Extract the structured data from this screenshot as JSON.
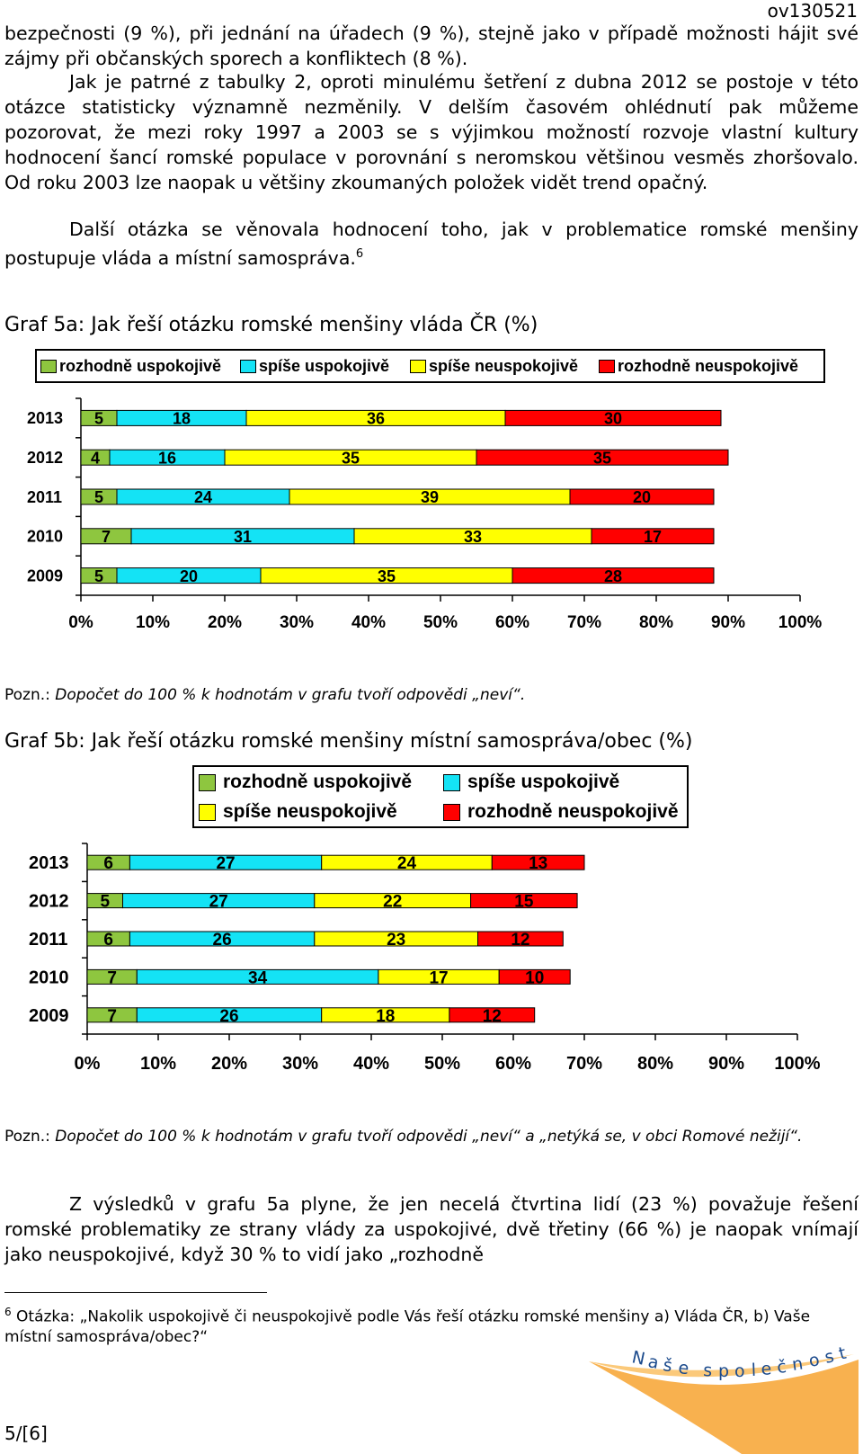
{
  "doc_code": "ov130521",
  "paragraphs": {
    "p1": "bezpečnosti (9 %), při jednání na úřadech (9 %), stejně jako v případě možnosti hájit své zájmy při občanských sporech a konfliktech (8 %).",
    "p2": "Jak je patrné z tabulky 2, oproti minulému šetření z dubna 2012 se postoje v této otázce statisticky významně nezměnily. V delším časovém ohlédnutí pak můžeme pozorovat, že mezi roky 1997 a 2003 se s výjimkou možností rozvoje vlastní kultury hodnocení šancí romské populace v porovnání s neromskou většinou vesměs zhoršovalo. Od roku 2003 lze naopak u většiny zkoumaných položek vidět trend opačný.",
    "p3": "Další otázka se věnovala hodnocení toho, jak v problematice romské menšiny postupuje vláda a místní samospráva.",
    "p3_sup": "6",
    "p4": "Z výsledků v grafu 5a plyne, že jen necelá čtvrtina lidí (23 %) považuje řešení romské problematiky ze strany vlády za uspokojivé, dvě třetiny (66 %) je naopak vnímají jako neuspokojivé, když 30 % to vidí jako „rozhodně"
  },
  "colors": {
    "rozhodne_uspokojive": "#8ec63f",
    "spise_uspokojive": "#14e3f5",
    "spise_neuspokojive": "#ffff00",
    "rozhodne_neuspokojive": "#ff0000"
  },
  "graf5a": {
    "title": "Graf 5a: Jak řeší otázku romské menšiny vláda ČR (%)",
    "note_prefix": "Pozn.:",
    "note": " Dopočet do 100 % k hodnotám v grafu tvoří odpovědi „neví“."
  },
  "graf5b": {
    "title": "Graf 5b: Jak řeší otázku romské menšiny místní samospráva/obec (%)",
    "note_prefix": "Pozn.:",
    "note": " Dopočet do 100 % k hodnotám v grafu tvoří odpovědi „neví“ a „netýká se, v obci Romové nežijí“."
  },
  "chart_data": [
    {
      "type": "bar",
      "orientation": "horizontal",
      "stacked": true,
      "categories": [
        "2013",
        "2012",
        "2011",
        "2010",
        "2009"
      ],
      "series": [
        {
          "name": "rozhodně uspokojivě",
          "values": [
            5,
            4,
            5,
            7,
            5
          ]
        },
        {
          "name": "spíše uspokojivě",
          "values": [
            18,
            16,
            24,
            31,
            20
          ]
        },
        {
          "name": "spíše neuspokojivě",
          "values": [
            36,
            35,
            39,
            33,
            35
          ]
        },
        {
          "name": "rozhodně neuspokojivě",
          "values": [
            30,
            35,
            20,
            17,
            28
          ]
        }
      ],
      "xticks": [
        "0%",
        "10%",
        "20%",
        "30%",
        "40%",
        "50%",
        "60%",
        "70%",
        "80%",
        "90%",
        "100%"
      ],
      "xlim": [
        0,
        100
      ],
      "legend": "top",
      "grid": false
    },
    {
      "type": "bar",
      "orientation": "horizontal",
      "stacked": true,
      "categories": [
        "2013",
        "2012",
        "2011",
        "2010",
        "2009"
      ],
      "series": [
        {
          "name": "rozhodně uspokojivě",
          "values": [
            6,
            5,
            6,
            7,
            7
          ]
        },
        {
          "name": "spíše uspokojivě",
          "values": [
            27,
            27,
            26,
            34,
            26
          ]
        },
        {
          "name": "spíše neuspokojivě",
          "values": [
            24,
            22,
            23,
            17,
            18
          ]
        },
        {
          "name": "rozhodně neuspokojivě",
          "values": [
            13,
            15,
            12,
            10,
            12
          ]
        }
      ],
      "xticks": [
        "0%",
        "10%",
        "20%",
        "30%",
        "40%",
        "50%",
        "60%",
        "70%",
        "80%",
        "90%",
        "100%"
      ],
      "xlim": [
        0,
        100
      ],
      "legend": "top",
      "grid": false
    }
  ],
  "footnote": {
    "mark": "6",
    "text": " Otázka: „Nakolik uspokojivě či neuspokojivě podle Vás řeší otázku romské menšiny a) Vláda ČR, b) Vaše místní samospráva/obec?“"
  },
  "page_number": "5/[6]",
  "logo_text": "Naše společnost"
}
